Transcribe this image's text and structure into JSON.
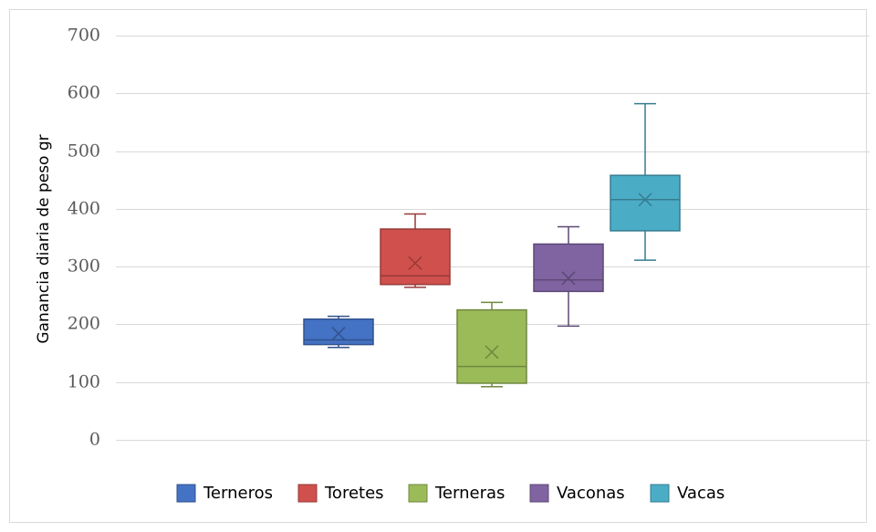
{
  "chart_data": {
    "type": "boxplot",
    "title": "",
    "xlabel": "",
    "ylabel": "Ganancia diaria de peso gr",
    "ylim": [
      0,
      700
    ],
    "yticks": [
      0,
      100,
      200,
      300,
      400,
      500,
      600,
      700
    ],
    "grid": true,
    "legend_position": "bottom",
    "series": [
      {
        "name": "Terneros",
        "color": "#4472C4",
        "min": 160,
        "q1": 165,
        "median": 173,
        "q3": 209,
        "max": 214,
        "mean": 184
      },
      {
        "name": "Toretes",
        "color": "#D0504D",
        "min": 264,
        "q1": 269,
        "median": 284,
        "q3": 365,
        "max": 391,
        "mean": 306
      },
      {
        "name": "Terneras",
        "color": "#9BBB59",
        "min": 92,
        "q1": 98,
        "median": 127,
        "q3": 225,
        "max": 238,
        "mean": 152
      },
      {
        "name": "Vaconas",
        "color": "#8064A2",
        "min": 197,
        "q1": 257,
        "median": 277,
        "q3": 339,
        "max": 369,
        "mean": 280
      },
      {
        "name": "Vacas",
        "color": "#4BACC6",
        "min": 311,
        "q1": 362,
        "median": 416,
        "q3": 458,
        "max": 582,
        "mean": 416
      }
    ]
  }
}
